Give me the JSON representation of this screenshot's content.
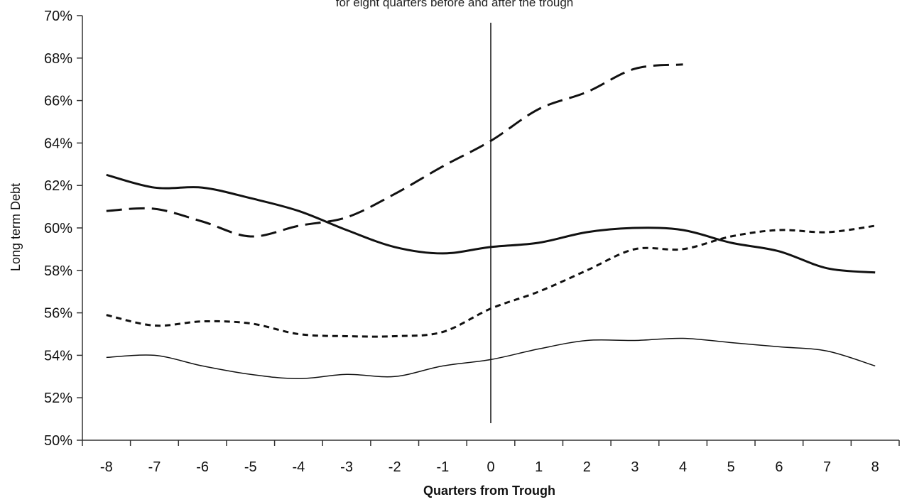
{
  "chart_data": {
    "type": "line",
    "title": "",
    "subtitle": "for eight quarters before and after the trough",
    "xlabel": "Quarters from Trough",
    "ylabel": "Long term Debt",
    "x": [
      -8,
      -7,
      -6,
      -5,
      -4,
      -3,
      -2,
      -1,
      0,
      1,
      2,
      3,
      4,
      5,
      6,
      7,
      8
    ],
    "xlim": [
      -8.5,
      8.5
    ],
    "ylim": [
      50,
      70
    ],
    "y_ticks": [
      50,
      52,
      54,
      56,
      58,
      60,
      62,
      64,
      66,
      68,
      70
    ],
    "y_tick_labels": [
      "50%",
      "52%",
      "54%",
      "56%",
      "58%",
      "60%",
      "62%",
      "64%",
      "66%",
      "68%",
      "70%"
    ],
    "x_tick_labels": [
      "-8",
      "-7",
      "-6",
      "-5",
      "-4",
      "-3",
      "-2",
      "-1",
      "0",
      "1",
      "2",
      "3",
      "4",
      "5",
      "6",
      "7",
      "8"
    ],
    "grid": false,
    "legend": "none",
    "reference_line_x": 0,
    "series": [
      {
        "style": "solid-thick",
        "color": "#111111",
        "values": [
          62.5,
          61.9,
          61.9,
          61.4,
          60.8,
          59.9,
          59.1,
          58.8,
          59.1,
          59.3,
          59.8,
          60.0,
          59.9,
          59.3,
          58.9,
          58.1,
          57.9
        ]
      },
      {
        "style": "long-dash",
        "color": "#111111",
        "values": [
          60.8,
          60.9,
          60.3,
          59.6,
          60.1,
          60.5,
          61.6,
          62.9,
          64.1,
          65.6,
          66.4,
          67.5,
          67.7,
          null,
          null,
          null,
          null
        ]
      },
      {
        "style": "short-dash",
        "color": "#111111",
        "values": [
          55.9,
          55.4,
          55.6,
          55.5,
          55.0,
          54.9,
          54.9,
          55.1,
          56.2,
          57.0,
          58.0,
          59.0,
          59.0,
          59.6,
          59.9,
          59.8,
          60.1
        ]
      },
      {
        "style": "solid-thin",
        "color": "#111111",
        "values": [
          53.9,
          54.0,
          53.5,
          53.1,
          52.9,
          53.1,
          53.0,
          53.5,
          53.8,
          54.3,
          54.7,
          54.7,
          54.8,
          54.6,
          54.4,
          54.2,
          53.5
        ]
      }
    ]
  }
}
